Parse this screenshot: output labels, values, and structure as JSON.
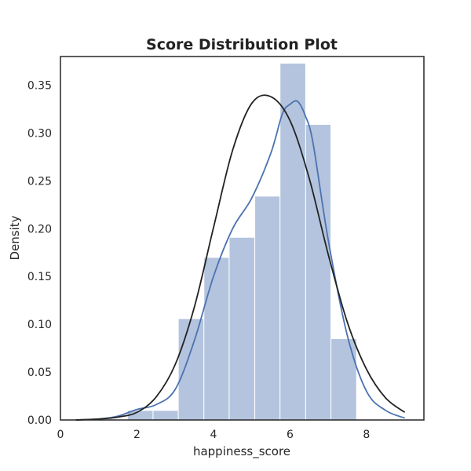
{
  "chart_data": {
    "type": "bar",
    "title": "Score Distribution Plot",
    "xlabel": "happiness_score",
    "ylabel": "Density",
    "xlim": [
      0,
      9.5
    ],
    "ylim": [
      0,
      0.38
    ],
    "grid": false,
    "legend": "none",
    "x_ticks": [
      0,
      2,
      4,
      6,
      8
    ],
    "y_ticks": [
      0.0,
      0.05,
      0.1,
      0.15,
      0.2,
      0.25,
      0.3,
      0.35
    ],
    "x_tick_labels": [
      "0",
      "2",
      "4",
      "6",
      "8"
    ],
    "y_tick_labels": [
      "0.00",
      "0.05",
      "0.10",
      "0.15",
      "0.20",
      "0.25",
      "0.30",
      "0.35"
    ],
    "histogram": {
      "bin_edges": [
        1.75,
        2.42,
        3.08,
        3.75,
        4.41,
        5.08,
        5.74,
        6.41,
        7.07,
        7.74
      ],
      "values": [
        0.01,
        0.01,
        0.106,
        0.17,
        0.191,
        0.234,
        0.373,
        0.309,
        0.085
      ],
      "color": "#b4c4de",
      "edge_color": "#ffffff"
    },
    "series": [
      {
        "type": "line",
        "color": "#4c72b0",
        "x": [
          0.4,
          1.0,
          1.5,
          2.0,
          2.5,
          3.0,
          3.5,
          4.0,
          4.5,
          5.0,
          5.5,
          5.8,
          6.0,
          6.2,
          6.4,
          6.6,
          7.0,
          7.5,
          8.0,
          8.5,
          9.0
        ],
        "y": [
          0.0,
          0.001,
          0.004,
          0.011,
          0.016,
          0.032,
          0.083,
          0.15,
          0.2,
          0.232,
          0.279,
          0.32,
          0.33,
          0.333,
          0.318,
          0.29,
          0.188,
          0.088,
          0.03,
          0.01,
          0.002
        ]
      },
      {
        "type": "line",
        "color": "#222222",
        "x": [
          0.4,
          1.0,
          1.5,
          2.0,
          2.5,
          3.0,
          3.5,
          4.0,
          4.5,
          5.0,
          5.5,
          6.0,
          6.5,
          7.0,
          7.5,
          8.0,
          8.5,
          9.0
        ],
        "y": [
          0.0,
          0.001,
          0.003,
          0.008,
          0.024,
          0.058,
          0.118,
          0.201,
          0.282,
          0.331,
          0.338,
          0.313,
          0.253,
          0.173,
          0.102,
          0.053,
          0.023,
          0.008
        ]
      }
    ]
  }
}
